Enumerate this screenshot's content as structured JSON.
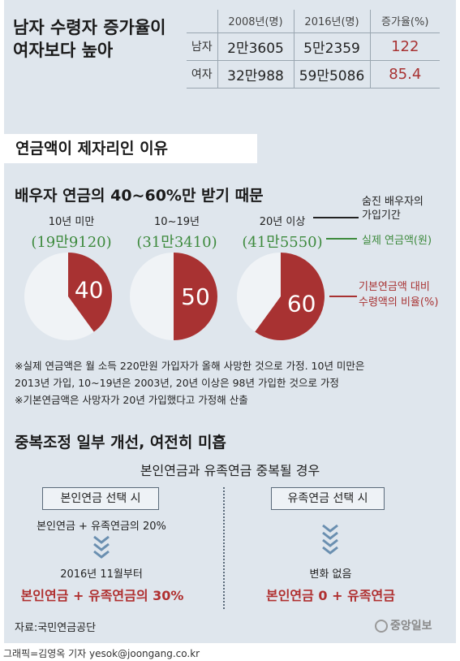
{
  "headline": {
    "line1": "남자 수령자 증가율이",
    "line2": "여자보다 높아"
  },
  "stats_table": {
    "headers": [
      "2008년(명)",
      "2016년(명)",
      "증가율(%)"
    ],
    "rows": [
      {
        "label": "남자",
        "v2008": "2만3605",
        "v2016": "5만2359",
        "rate": "122"
      },
      {
        "label": "여자",
        "v2008": "32만988",
        "v2016": "59만5086",
        "rate": "85.4"
      }
    ]
  },
  "section2": {
    "tag": "연금액이 제자리인 이유",
    "title": "배우자 연금의 40~60%만 받기 때문"
  },
  "pies": [
    {
      "period": "10년 미만",
      "amount": "(19만9120)",
      "percent": 40,
      "label": "40"
    },
    {
      "period": "10~19년",
      "amount": "(31만3410)",
      "percent": 50,
      "label": "50"
    },
    {
      "period": "20년 이상",
      "amount": "(41만5550)",
      "percent": 60,
      "label": "60"
    }
  ],
  "legend": {
    "period_line1": "숨진 배우자의",
    "period_line2": "가입기간",
    "amount": "실제 연금액(원)",
    "ratio_line1": "기본연금액 대비",
    "ratio_line2": "수령액의 비율(%)"
  },
  "notes": {
    "n1": "※실제 연금액은 월 소득 220만원 가입자가 올해 사망한 것으로 가정. 10년 미만은",
    "n2": "2013년 가입, 10~19년은 2003년, 20년 이상은 98년 가입한 것으로 가정",
    "n3": "※기본연금액은 사망자가 20년 가입했다고 가정해 산출"
  },
  "section3": {
    "title": "중복조정 일부 개선, 여전히 미흡",
    "subtitle": "본인연금과 유족연금 중복될 경우",
    "left": {
      "box": "본인연금 선택 시",
      "before": "본인연금 + 유족연금의 20%",
      "when": "2016년 11월부터",
      "result": "본인연금 + 유족연금의 30%"
    },
    "right": {
      "box": "유족연금 선택 시",
      "when": "변화 없음",
      "result": "본인연금 0 + 유족연금"
    }
  },
  "source": "자료:국민연금공단",
  "logo": "중앙일보",
  "credit": "그래픽=김영옥 기자 yesok@joongang.co.kr",
  "colors": {
    "red": "#a83232",
    "green": "#3d8a3d",
    "panel": "#dfe6ed",
    "pie_bg": "#f0f3f6"
  }
}
